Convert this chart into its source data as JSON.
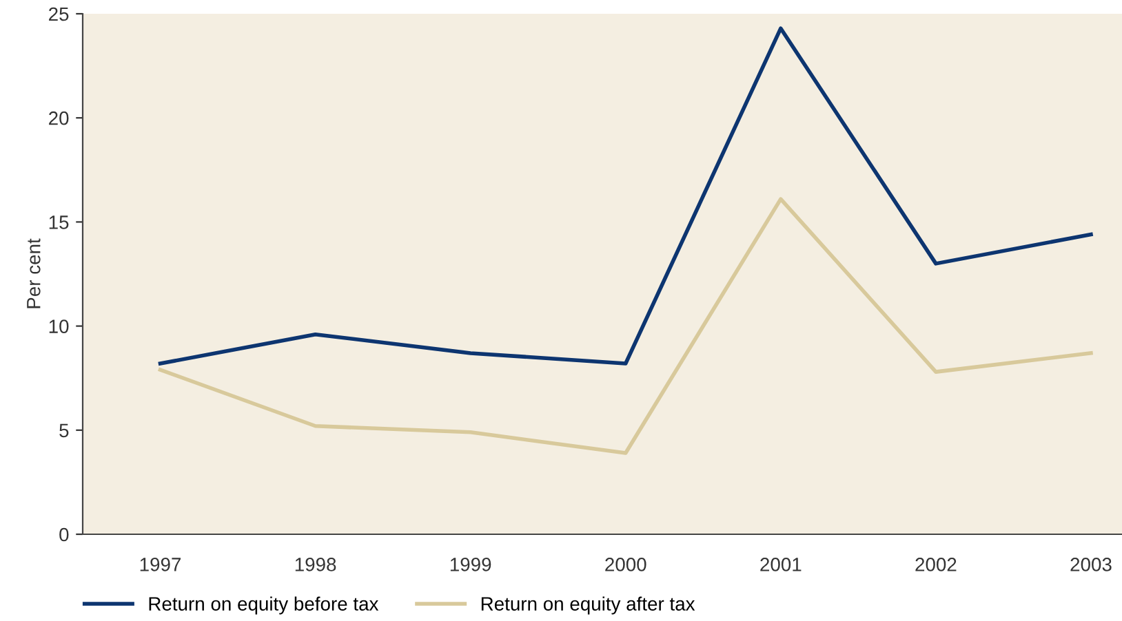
{
  "chart_data": {
    "type": "line",
    "ylabel": "Per cent",
    "categories": [
      "1997",
      "1998",
      "1999",
      "2000",
      "2001",
      "2002",
      "2003"
    ],
    "series": [
      {
        "name": "Return on equity before tax",
        "color": "#0d3570",
        "values": [
          8.2,
          9.6,
          8.7,
          8.2,
          24.3,
          13.0,
          14.4
        ]
      },
      {
        "name": "Return on equity after tax",
        "color": "#d8c99b",
        "values": [
          7.9,
          5.2,
          4.9,
          3.9,
          16.1,
          7.8,
          8.7
        ]
      }
    ],
    "ylim": [
      0,
      25
    ],
    "yticks": [
      0,
      5,
      10,
      15,
      20,
      25
    ],
    "grid": false,
    "legend": "bottom",
    "marker": "none",
    "line_style": "solid"
  }
}
